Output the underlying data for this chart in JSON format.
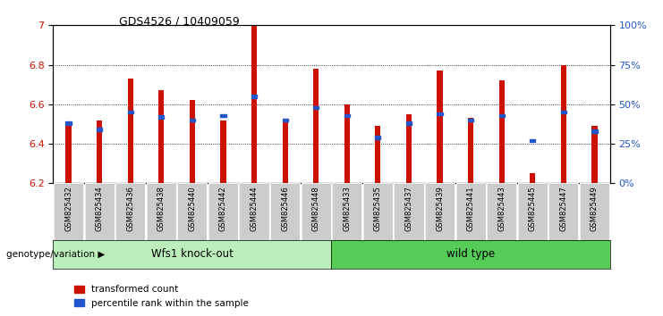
{
  "title": "GDS4526 / 10409059",
  "samples": [
    "GSM825432",
    "GSM825434",
    "GSM825436",
    "GSM825438",
    "GSM825440",
    "GSM825442",
    "GSM825444",
    "GSM825446",
    "GSM825448",
    "GSM825433",
    "GSM825435",
    "GSM825437",
    "GSM825439",
    "GSM825441",
    "GSM825443",
    "GSM825445",
    "GSM825447",
    "GSM825449"
  ],
  "group_labels": [
    "Wfs1 knock-out",
    "wild type"
  ],
  "group_split": 9,
  "bar_values": [
    6.51,
    6.52,
    6.73,
    6.67,
    6.62,
    6.52,
    7.0,
    6.51,
    6.78,
    6.6,
    6.49,
    6.55,
    6.77,
    6.53,
    6.72,
    6.25,
    6.8,
    6.49
  ],
  "percentile_values": [
    38,
    34,
    45,
    42,
    40,
    43,
    55,
    40,
    48,
    43,
    29,
    38,
    44,
    40,
    43,
    27,
    45,
    33
  ],
  "bar_bottom": 6.2,
  "ylim_left": [
    6.2,
    7.0
  ],
  "ylim_right": [
    0,
    100
  ],
  "bar_color": "#cc1100",
  "blue_color": "#2255cc",
  "group1_bg": "#bbeebb",
  "group2_bg": "#55cc55",
  "xlabel_bg": "#cccccc",
  "yticks_left": [
    6.2,
    6.4,
    6.6,
    6.8,
    7.0
  ],
  "ytick_labels_left": [
    "6.2",
    "6.4",
    "6.6",
    "6.8",
    "7"
  ],
  "yticks_right": [
    0,
    25,
    50,
    75,
    100
  ],
  "ytick_labels_right": [
    "0%",
    "25%",
    "50%",
    "75%",
    "100%"
  ],
  "legend_items": [
    "transformed count",
    "percentile rank within the sample"
  ],
  "genotype_label": "genotype/variation"
}
